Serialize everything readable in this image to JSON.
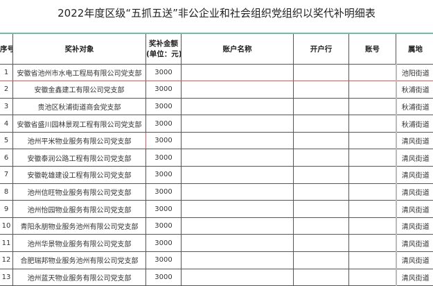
{
  "title": "2022年度区级“五抓五送”非公企业和社会组织党组织以奖代补明细表",
  "columns": [
    "序号",
    "奖补对象",
    "奖补金额\n(单位：元)",
    "账户名称",
    "开户行",
    "账号",
    "属地"
  ],
  "rows": [
    [
      "1",
      "安徽省池州市水电工程局有限公司党支部",
      "3000",
      "",
      "",
      "",
      "池阳街道"
    ],
    [
      "2",
      "安徽金鑫建工有限公司党支部",
      "3000",
      "",
      "",
      "",
      "秋浦街道"
    ],
    [
      "3",
      "贵池区秋浦街道商会党支部",
      "3000",
      "",
      "",
      "",
      "秋浦街道"
    ],
    [
      "4",
      "安徽省盛川园林景观工程有限公司党支部",
      "3000",
      "",
      "",
      "",
      "秋浦街道"
    ],
    [
      "5",
      "池州平米物业服务有限公司党支部",
      "3000",
      "",
      "",
      "",
      "清风街道"
    ],
    [
      "6",
      "安徽泰润公路工程有限公司党支部",
      "3000",
      "",
      "",
      "",
      "清风街道"
    ],
    [
      "7",
      "安徽乾雄建设工程有限公司党支部",
      "3000",
      "",
      "",
      "",
      "清风街道"
    ],
    [
      "8",
      "池州信旺物业服务有限公司党支部",
      "3000",
      "",
      "",
      "",
      "清风街道"
    ],
    [
      "9",
      "池州怡园物业服务有限公司党支部",
      "3000",
      "",
      "",
      "",
      "清风街道"
    ],
    [
      "10",
      "青阳永朋物业服务池州有限公司党支部",
      "3000",
      "",
      "",
      "",
      "清风街道"
    ],
    [
      "11",
      "池州华景物业服务有限公司党支部",
      "3000",
      "",
      "",
      "",
      "清风街道"
    ],
    [
      "12",
      "合肥瑞邦物业服务池州有限公司党支部",
      "3000",
      "",
      "",
      "",
      "清风街道"
    ],
    [
      "13",
      "池州蓝天物业服务有限公司党支部",
      "3000",
      "",
      "",
      "",
      "清风街道"
    ]
  ]
}
